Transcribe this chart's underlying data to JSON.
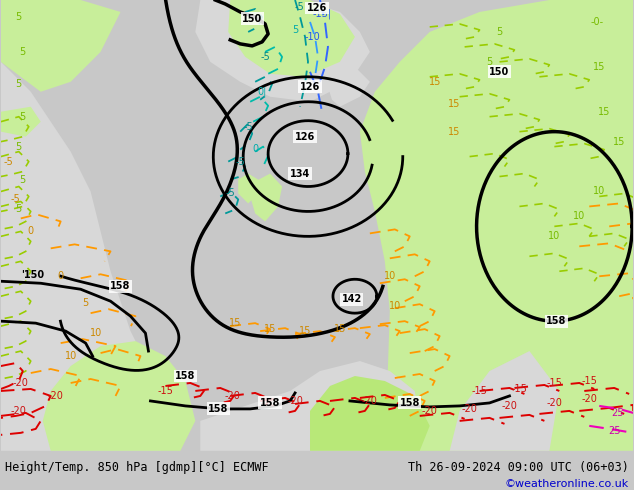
{
  "title_left": "Height/Temp. 850 hPa [gdmp][°C] ECMWF",
  "title_right": "Th 26-09-2024 09:00 UTC (06+03)",
  "watermark": "©weatheronline.co.uk",
  "bg_light_gray": "#d8d8d8",
  "bg_mid_gray": "#c8c8c8",
  "land_green_light": "#c8ee9a",
  "land_green_mid": "#b8e878",
  "land_gray_light": "#e0e0e0",
  "sea_gray": "#cccccc",
  "bottom_bar_color": "#cccccc",
  "watermark_color": "#0000cc",
  "title_fontsize": 8.5,
  "watermark_fontsize": 8
}
